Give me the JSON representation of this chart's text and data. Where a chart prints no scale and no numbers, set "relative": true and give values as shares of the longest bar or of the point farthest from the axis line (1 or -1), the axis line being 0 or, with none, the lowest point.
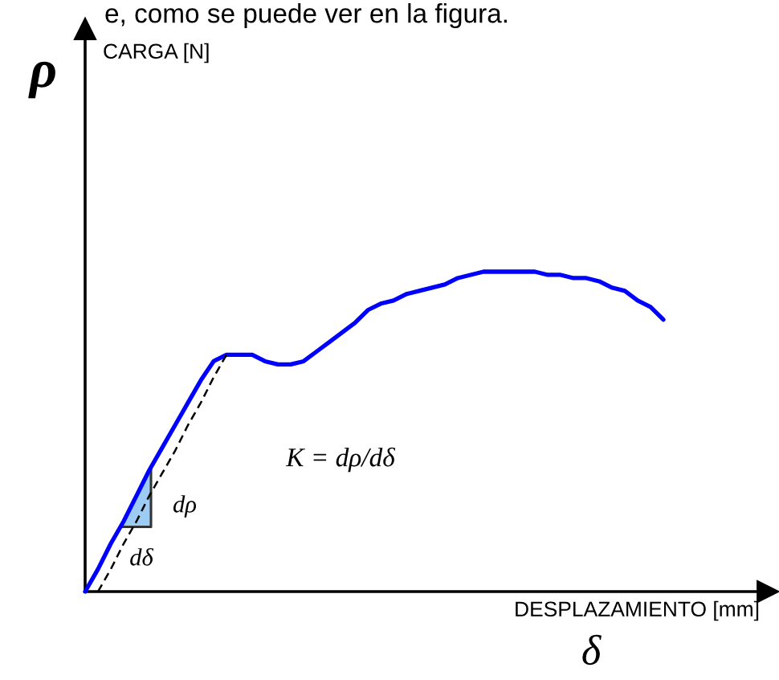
{
  "chart_data": {
    "type": "line",
    "xlabel": "DESPLAZAMIENTO [mm]",
    "relative": true,
    "categories": [
      null,
      null,
      null,
      null,
      null,
      null,
      null,
      null,
      null,
      null,
      null,
      null,
      null,
      null,
      null,
      null,
      null,
      null,
      null,
      null,
      null,
      null,
      null,
      null,
      null,
      null,
      null,
      null,
      null,
      null,
      null,
      null,
      null,
      null,
      null,
      null,
      null,
      null,
      null,
      null,
      null,
      null,
      null,
      null,
      null,
      null
    ],
    "series": [
      {
        "color": "#0000ff",
        "values": [
          0,
          0.07,
          0.15,
          0.22,
          0.3,
          0.38,
          0.45,
          0.52,
          0.59,
          0.66,
          0.72,
          0.74,
          0.74,
          0.74,
          0.72,
          0.71,
          0.71,
          0.72,
          0.75,
          0.78,
          0.81,
          0.84,
          0.88,
          0.9,
          0.91,
          0.93,
          0.94,
          0.95,
          0.96,
          0.98,
          0.99,
          1.0,
          1.0,
          1.0,
          1.0,
          1.0,
          0.99,
          0.99,
          0.98,
          0.98,
          0.97,
          0.95,
          0.94,
          0.91,
          0.89,
          0.85
        ]
      },
      {
        "type": "line",
        "color": "#000000",
        "line_style": "dashed",
        "values": [
          null,
          0,
          0.07,
          0.15,
          0.22,
          0.3,
          0.37,
          0.44,
          0.52,
          0.59,
          0.67,
          0.74,
          null,
          null,
          null,
          null,
          null,
          null,
          null,
          null,
          null,
          null,
          null,
          null,
          null,
          null,
          null,
          null,
          null,
          null,
          null,
          null,
          null,
          null,
          null,
          null,
          null,
          null,
          null,
          null,
          null,
          null,
          null,
          null,
          null,
          null
        ]
      }
    ],
    "annotations": [
      "e, como se puede ver en la figura.",
      "ρ",
      "CARGA [N]",
      "δ",
      "K = dρ/dδ",
      "dρ",
      "dδ"
    ]
  }
}
